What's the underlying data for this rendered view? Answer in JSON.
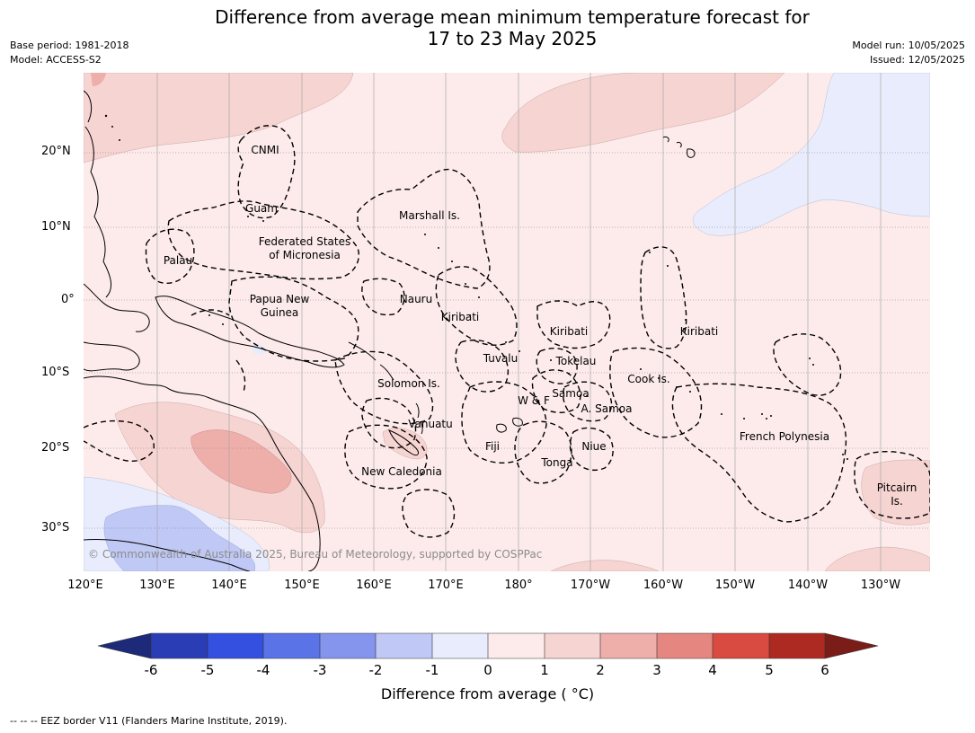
{
  "title": {
    "line1": "Difference from average mean minimum temperature forecast for",
    "line2": "17 to 23 May 2025"
  },
  "meta": {
    "base_period": "Base period: 1981-2018",
    "model": "Model: ACCESS-S2",
    "model_run": "Model run: 10/05/2025",
    "issued": "Issued: 12/05/2025"
  },
  "axes": {
    "latitude_labels": [
      "20°N",
      "10°N",
      "0°",
      "10°S",
      "20°S",
      "30°S"
    ],
    "longitude_labels": [
      "120°E",
      "130°E",
      "140°E",
      "150°E",
      "160°E",
      "170°E",
      "180°",
      "170°W",
      "160°W",
      "150°W",
      "140°W",
      "130°W"
    ]
  },
  "places": {
    "cnmi": "CNMI",
    "guam": "Guam",
    "marshall": "Marshall Is.",
    "fsm_1": "Federated States",
    "fsm_2": "of Micronesia",
    "palau": "Palau",
    "png_1": "Papua New",
    "png_2": "Guinea",
    "nauru": "Nauru",
    "kiribati_west": "Kiribati",
    "kiribati_central": "Kiribati",
    "kiribati_east": "Kiribati",
    "tuvalu": "Tuvalu",
    "tokelau": "Tokelau",
    "cook": "Cook Is.",
    "solomon": "Solomon Is.",
    "samoa": "Samoa",
    "wf": "W & F",
    "a_samoa": "A. Samoa",
    "vanuatu": "Vanuatu",
    "fiji": "Fiji",
    "niue": "Niue",
    "tonga": "Tonga",
    "french_polynesia": "French Polynesia",
    "new_caledonia": "New Caledonia",
    "pitcairn_1": "Pitcairn",
    "pitcairn_2": "Is."
  },
  "credit": "© Commonwealth of Australia 2025, Bureau of Meteorology, supported by COSPPac",
  "colorbar": {
    "ticks": [
      "-6",
      "-5",
      "-4",
      "-3",
      "-2",
      "-1",
      "0",
      "1",
      "2",
      "3",
      "4",
      "5",
      "6"
    ],
    "label": "Difference from average ( °C)",
    "colors": [
      "#1d2a7a",
      "#2a3db4",
      "#3350e0",
      "#5a73e6",
      "#8595ee",
      "#c0c8f5",
      "#e8ecfc",
      "#fcebea",
      "#f6d4d2",
      "#eeaeaa",
      "#e58680",
      "#d94a40",
      "#ad2a22",
      "#7a1c18"
    ]
  },
  "footer": "--  --  -- EEZ border V11 (Flanders Marine Institute, 2019)."
}
